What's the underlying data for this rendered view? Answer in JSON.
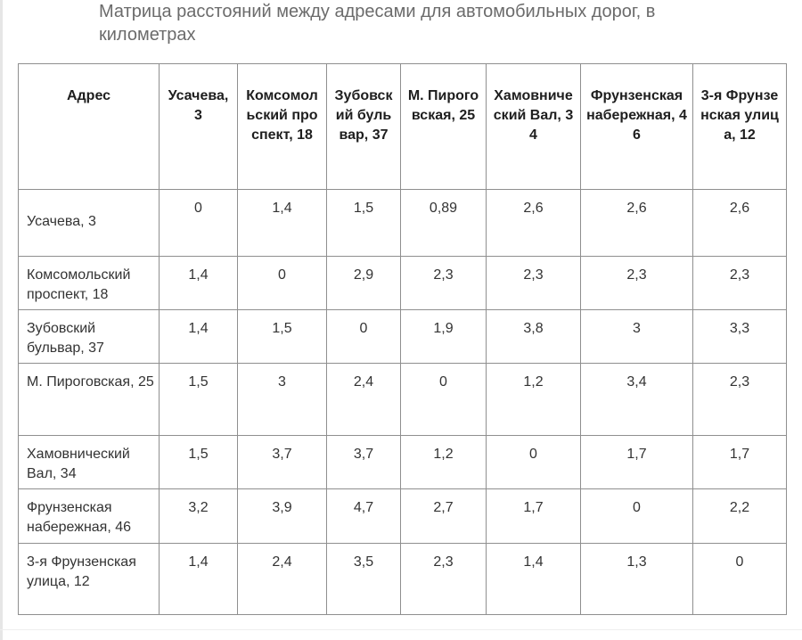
{
  "caption": "Матрица расстояний между адресами для автомобильных дорог, в километрах",
  "table": {
    "corner_header": "Адрес",
    "column_headers": [
      "Усачева, 3",
      "Комсомольский проспект, 18",
      "Зубовский бульвар, 37",
      "М. Пироговская, 25",
      "Хамовнический Вал, 34",
      "Фрунзенская набережная, 46",
      "3-я Фрунзенская улица, 12"
    ],
    "rows": [
      {
        "address": "Усачева, 3",
        "values": [
          "0",
          "1,4",
          "1,5",
          "0,89",
          "2,6",
          "2,6",
          "2,6"
        ]
      },
      {
        "address": "Комсомольский проспект, 18",
        "values": [
          "1,4",
          "0",
          "2,9",
          "2,3",
          "2,3",
          "2,3",
          "2,3"
        ]
      },
      {
        "address": "Зубовский бульвар, 37",
        "values": [
          "1,4",
          "1,5",
          "0",
          "1,9",
          "3,8",
          "3",
          "3,3"
        ]
      },
      {
        "address": "М. Пироговская, 25",
        "values": [
          "1,5",
          "3",
          "2,4",
          "0",
          "1,2",
          "3,4",
          "2,3"
        ]
      },
      {
        "address": "Хамовнический Вал, 34",
        "values": [
          "1,5",
          "3,7",
          "3,7",
          "1,2",
          "0",
          "1,7",
          "1,7"
        ]
      },
      {
        "address": "Фрунзенская набережная, 46",
        "values": [
          "3,2",
          "3,9",
          "4,7",
          "2,7",
          "1,7",
          "0",
          "2,2"
        ]
      },
      {
        "address": "3-я Фрунзенская улица, 12",
        "values": [
          "1,4",
          "2,4",
          "3,5",
          "2,3",
          "1,4",
          "1,3",
          "0"
        ]
      }
    ]
  }
}
